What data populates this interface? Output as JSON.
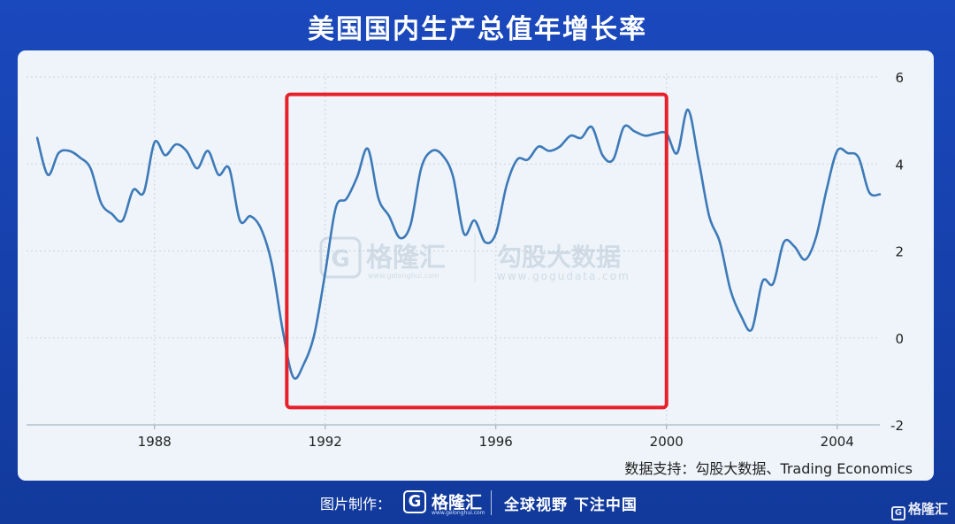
{
  "title": "美国国内生产总值年增长率",
  "source": "数据支持：勾股大数据、Trading Economics",
  "watermark": {
    "brand1": "格隆汇",
    "brand1_url": "www.gelonghui.com",
    "brand2": "勾股大数据",
    "brand2_url": "www.gogudata.com"
  },
  "footer": {
    "credit_label": "图片制作：",
    "brand": "格隆汇",
    "brand_url": "www.gelonghui.com",
    "slogan": "全球视野 下注中国",
    "corner_logo": "格隆汇"
  },
  "colors": {
    "line": "#3d7ab8",
    "highlight_box": "#e8202a",
    "background": "#1a49bd",
    "panel": "#eef4fa"
  },
  "chart_data": {
    "type": "line",
    "x_ticks": [
      "1988",
      "1992",
      "1996",
      "2000",
      "2004"
    ],
    "y_ticks": [
      "6",
      "4",
      "2",
      "0",
      "-2"
    ],
    "xlim": [
      1985.0,
      2005.0
    ],
    "ylim": [
      -2,
      6
    ],
    "grid": true,
    "highlight_range": {
      "x": [
        1991.1,
        2000.0
      ],
      "y": [
        -1.6,
        5.6
      ]
    },
    "series": [
      {
        "values": [
          [
            1985.25,
            4.6
          ],
          [
            1985.5,
            3.75
          ],
          [
            1985.75,
            4.25
          ],
          [
            1986.0,
            4.3
          ],
          [
            1986.25,
            4.15
          ],
          [
            1986.5,
            3.9
          ],
          [
            1986.75,
            3.1
          ],
          [
            1987.0,
            2.85
          ],
          [
            1987.25,
            2.7
          ],
          [
            1987.5,
            3.4
          ],
          [
            1987.75,
            3.35
          ],
          [
            1988.0,
            4.5
          ],
          [
            1988.25,
            4.2
          ],
          [
            1988.5,
            4.45
          ],
          [
            1988.75,
            4.3
          ],
          [
            1989.0,
            3.9
          ],
          [
            1989.25,
            4.3
          ],
          [
            1989.5,
            3.75
          ],
          [
            1989.75,
            3.9
          ],
          [
            1990.0,
            2.7
          ],
          [
            1990.25,
            2.8
          ],
          [
            1990.5,
            2.5
          ],
          [
            1990.75,
            1.7
          ],
          [
            1991.0,
            0.2
          ],
          [
            1991.25,
            -0.9
          ],
          [
            1991.5,
            -0.6
          ],
          [
            1991.75,
            0.1
          ],
          [
            1992.0,
            1.5
          ],
          [
            1992.25,
            3.0
          ],
          [
            1992.5,
            3.2
          ],
          [
            1992.75,
            3.7
          ],
          [
            1993.0,
            4.35
          ],
          [
            1993.25,
            3.2
          ],
          [
            1993.5,
            2.8
          ],
          [
            1993.75,
            2.3
          ],
          [
            1994.0,
            2.6
          ],
          [
            1994.25,
            3.9
          ],
          [
            1994.5,
            4.3
          ],
          [
            1994.75,
            4.2
          ],
          [
            1995.0,
            3.7
          ],
          [
            1995.25,
            2.4
          ],
          [
            1995.5,
            2.7
          ],
          [
            1995.75,
            2.2
          ],
          [
            1996.0,
            2.4
          ],
          [
            1996.25,
            3.5
          ],
          [
            1996.5,
            4.1
          ],
          [
            1996.75,
            4.1
          ],
          [
            1997.0,
            4.4
          ],
          [
            1997.25,
            4.3
          ],
          [
            1997.5,
            4.4
          ],
          [
            1997.75,
            4.65
          ],
          [
            1998.0,
            4.6
          ],
          [
            1998.25,
            4.85
          ],
          [
            1998.5,
            4.2
          ],
          [
            1998.75,
            4.1
          ],
          [
            1999.0,
            4.85
          ],
          [
            1999.25,
            4.75
          ],
          [
            1999.5,
            4.65
          ],
          [
            1999.75,
            4.7
          ],
          [
            2000.0,
            4.7
          ],
          [
            2000.25,
            4.25
          ],
          [
            2000.5,
            5.25
          ],
          [
            2000.75,
            4.1
          ],
          [
            2001.0,
            2.8
          ],
          [
            2001.25,
            2.2
          ],
          [
            2001.5,
            1.1
          ],
          [
            2001.75,
            0.5
          ],
          [
            2002.0,
            0.2
          ],
          [
            2002.25,
            1.3
          ],
          [
            2002.5,
            1.25
          ],
          [
            2002.75,
            2.2
          ],
          [
            2003.0,
            2.1
          ],
          [
            2003.25,
            1.8
          ],
          [
            2003.5,
            2.3
          ],
          [
            2003.75,
            3.4
          ],
          [
            2004.0,
            4.3
          ],
          [
            2004.25,
            4.25
          ],
          [
            2004.5,
            4.15
          ],
          [
            2004.75,
            3.35
          ],
          [
            2005.0,
            3.3
          ]
        ]
      }
    ]
  }
}
